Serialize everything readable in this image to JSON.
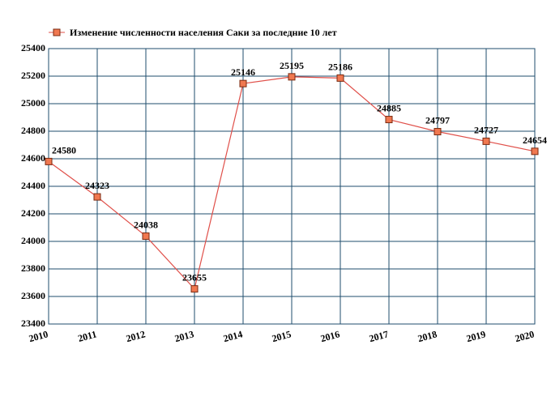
{
  "chart_data": {
    "type": "line",
    "legend_label": "Изменение численности населения Саки за последние 10 лет",
    "categories": [
      "2010",
      "2011",
      "2012",
      "2013",
      "2014",
      "2015",
      "2016",
      "2017",
      "2018",
      "2019",
      "2020"
    ],
    "values": [
      24580,
      24323,
      24038,
      23655,
      25146,
      25195,
      25186,
      24885,
      24797,
      24727,
      24654
    ],
    "color": "#e0504a",
    "marker_color": "#f07850",
    "grid_color": "#1f4e6e",
    "ylim": [
      23400,
      25400
    ],
    "yticks": [
      23400,
      23600,
      23800,
      24000,
      24200,
      24400,
      24600,
      24800,
      25000,
      25200,
      25400
    ],
    "grid": true
  }
}
